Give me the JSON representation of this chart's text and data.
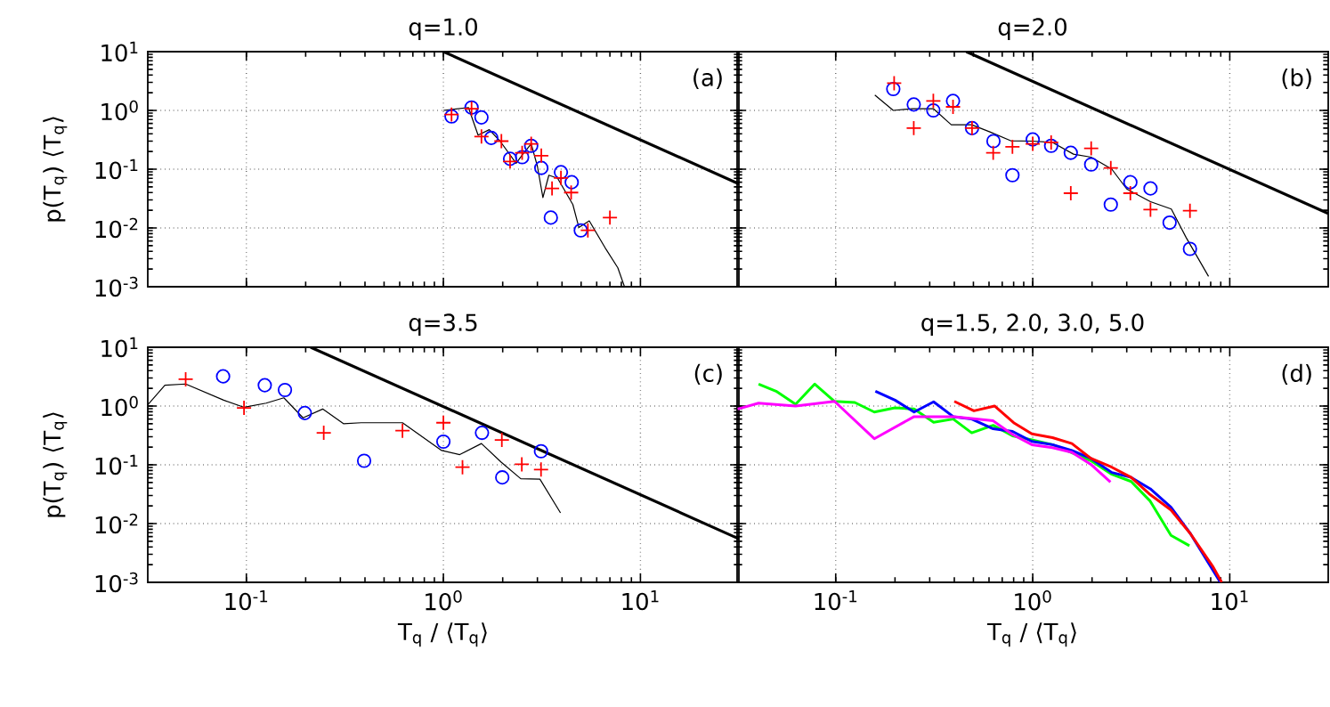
{
  "chart_data": [
    {
      "type": "scatter",
      "title": "q=1.0",
      "ylabel": "p(T$_{q}$) ⟨T$_{q}$⟩",
      "annotations": [
        "(a)"
      ],
      "log": "xy",
      "grid": true,
      "tick_labels": "y",
      "xlim": [
        0.0316,
        31.6
      ],
      "ylim": [
        0.001,
        10
      ],
      "xticks": [
        {
          "value": 0.1,
          "label": null
        },
        {
          "value": 1,
          "label": null
        },
        {
          "value": 10,
          "label": null
        }
      ],
      "yticks": [
        {
          "value": 0.001,
          "label": "10$^{-3}$"
        },
        {
          "value": 0.01,
          "label": "10$^{-2}$"
        },
        {
          "value": 0.1,
          "label": "10$^{-1}$"
        },
        {
          "value": 1,
          "label": "10$^{0}$"
        },
        {
          "value": 10,
          "label": "10$^{1}$"
        }
      ],
      "series": [
        {
          "type": "line",
          "marker": "none",
          "color": "#000000",
          "x": [
            1,
            31.6
          ],
          "values": [
            10,
            0.0562
          ]
        },
        {
          "type": "line",
          "marker": "none",
          "color": "#000000",
          "x": [
            1,
            1.34,
            1.5,
            1.71,
            1.94,
            2.34,
            2.56,
            2.79,
            3.0,
            3.2,
            3.43,
            3.8,
            4.54,
            4.87,
            5.5,
            6.7,
            7.68,
            8.3
          ],
          "values": [
            1,
            1.12,
            0.38,
            0.47,
            0.3,
            0.126,
            0.19,
            0.27,
            0.112,
            0.033,
            0.079,
            0.07,
            0.025,
            0.0102,
            0.0132,
            0.0043,
            0.0021,
            0.001
          ]
        },
        {
          "type": "scatter",
          "marker": "circle",
          "color": "#0000ff",
          "x": [
            1.1,
            1.39,
            1.56,
            1.75,
            2.18,
            2.51,
            2.79,
            3.14,
            3.95,
            3.51,
            4.48,
            4.98
          ],
          "values": [
            0.79,
            1.12,
            0.76,
            0.34,
            0.15,
            0.16,
            0.25,
            0.105,
            0.089,
            0.015,
            0.06,
            0.0091
          ]
        },
        {
          "type": "scatter",
          "marker": "cross",
          "color": "#ff0000",
          "x": [
            1.1,
            1.39,
            1.56,
            1.97,
            2.18,
            2.51,
            2.79,
            3.14,
            3.56,
            3.95,
            4.45,
            5.41,
            7.0
          ],
          "values": [
            0.85,
            1.07,
            0.36,
            0.3,
            0.135,
            0.19,
            0.27,
            0.17,
            0.047,
            0.071,
            0.04,
            0.0091,
            0.015
          ]
        }
      ]
    },
    {
      "type": "scatter",
      "title": "q=2.0",
      "annotations": [
        "(b)"
      ],
      "log": "xy",
      "grid": true,
      "tick_labels": false,
      "xlim": [
        0.0316,
        31.6
      ],
      "ylim": [
        0.001,
        10
      ],
      "xticks": [
        {
          "value": 0.1,
          "label": null
        },
        {
          "value": 1,
          "label": null
        },
        {
          "value": 10,
          "label": null
        }
      ],
      "yticks": [
        {
          "value": 0.001,
          "label": null
        },
        {
          "value": 0.01,
          "label": null
        },
        {
          "value": 0.1,
          "label": null
        },
        {
          "value": 1,
          "label": null
        },
        {
          "value": 10,
          "label": null
        }
      ],
      "series": [
        {
          "type": "line",
          "marker": "none",
          "color": "#000000",
          "x": [
            0.46,
            31.6
          ],
          "values": [
            10,
            0.0176
          ]
        },
        {
          "type": "line",
          "marker": "none",
          "color": "#000000",
          "x": [
            0.158,
            0.196,
            0.245,
            0.313,
            0.386,
            0.49,
            0.606,
            0.773,
            1.0,
            1.26,
            1.61,
            1.98,
            2.52,
            3.0,
            3.96,
            5.05,
            6.0,
            7.8
          ],
          "values": [
            1.83,
            1.0,
            1.07,
            1.07,
            0.57,
            0.57,
            0.43,
            0.305,
            0.3,
            0.285,
            0.18,
            0.16,
            0.1,
            0.046,
            0.028,
            0.021,
            0.0069,
            0.0015
          ]
        },
        {
          "type": "scatter",
          "marker": "circle",
          "color": "#0000ff",
          "x": [
            0.196,
            0.249,
            0.313,
            0.394,
            0.492,
            0.632,
            0.789,
            1.0,
            1.24,
            1.56,
            1.98,
            2.49,
            3.13,
            3.96,
            4.95,
            6.28
          ],
          "values": [
            2.31,
            1.26,
            1.0,
            1.45,
            0.5,
            0.3,
            0.079,
            0.32,
            0.25,
            0.19,
            0.12,
            0.025,
            0.06,
            0.047,
            0.0123,
            0.0044
          ]
        },
        {
          "type": "scatter",
          "marker": "cross",
          "color": "#ff0000",
          "x": [
            0.198,
            0.249,
            0.313,
            0.394,
            0.492,
            0.63,
            0.789,
            1.0,
            1.24,
            1.56,
            1.98,
            2.49,
            3.13,
            3.96,
            6.28
          ],
          "values": [
            2.9,
            0.5,
            1.45,
            1.15,
            0.5,
            0.19,
            0.24,
            0.27,
            0.285,
            0.039,
            0.226,
            0.105,
            0.039,
            0.0205,
            0.0196
          ]
        }
      ]
    },
    {
      "type": "scatter",
      "title": "q=3.5",
      "xlabel": "T$_{q}$ / ⟨T$_{q}$⟩",
      "ylabel": "p(T$_{q}$) ⟨T$_{q}$⟩",
      "annotations": [
        "(c)"
      ],
      "log": "xy",
      "grid": true,
      "xlim": [
        0.0316,
        31.6
      ],
      "ylim": [
        0.001,
        10
      ],
      "xticks": [
        {
          "value": 0.1,
          "label": "10$^{-1}$"
        },
        {
          "value": 1,
          "label": "10$^{0}$"
        },
        {
          "value": 10,
          "label": "10$^{1}$"
        }
      ],
      "yticks": [
        {
          "value": 0.001,
          "label": "10$^{-3}$"
        },
        {
          "value": 0.01,
          "label": "10$^{-2}$"
        },
        {
          "value": 0.1,
          "label": "10$^{-1}$"
        },
        {
          "value": 1,
          "label": "10$^{0}$"
        },
        {
          "value": 10,
          "label": "10$^{1}$"
        }
      ],
      "series": [
        {
          "type": "line",
          "marker": "none",
          "color": "#000000",
          "x": [
            0.212,
            31.6
          ],
          "values": [
            10,
            0.0055
          ]
        },
        {
          "type": "line",
          "marker": "none",
          "color": "#000000",
          "x": [
            0.0316,
            0.0386,
            0.0492,
            0.0767,
            0.0975,
            0.126,
            0.155,
            0.194,
            0.244,
            0.311,
            0.383,
            0.62,
            0.98,
            1.21,
            1.56,
            1.97,
            2.47,
            3.09,
            3.93
          ],
          "values": [
            1.05,
            2.26,
            2.37,
            1.26,
            0.95,
            1.12,
            1.38,
            0.63,
            0.89,
            0.5,
            0.52,
            0.52,
            0.175,
            0.149,
            0.23,
            0.11,
            0.058,
            0.057,
            0.0152
          ]
        },
        {
          "type": "scatter",
          "marker": "circle",
          "color": "#0000ff",
          "x": [
            0.0762,
            0.124,
            0.157,
            0.198,
            0.396,
            1.0,
            1.57,
            1.99,
            3.13
          ],
          "values": [
            3.2,
            2.26,
            1.87,
            0.76,
            0.117,
            0.248,
            0.35,
            0.061,
            0.17
          ]
        },
        {
          "type": "scatter",
          "marker": "cross",
          "color": "#ff0000",
          "x": [
            0.0492,
            0.0973,
            0.247,
            0.62,
            1.0,
            1.25,
            1.98,
            2.5,
            3.13
          ],
          "values": [
            2.85,
            0.93,
            0.35,
            0.38,
            0.52,
            0.091,
            0.265,
            0.102,
            0.083
          ]
        }
      ]
    },
    {
      "type": "line",
      "title": "q=1.5, 2.0, 3.0, 5.0",
      "xlabel": "T$_{q}$ / ⟨T$_{q}$⟩",
      "annotations": [
        "(d)"
      ],
      "log": "xy",
      "grid": true,
      "tick_labels": "x",
      "xlim": [
        0.0316,
        31.6
      ],
      "ylim": [
        0.001,
        10
      ],
      "xticks": [
        {
          "value": 0.1,
          "label": "10$^{-1}$"
        },
        {
          "value": 1,
          "label": "10$^{0}$"
        },
        {
          "value": 10,
          "label": "10$^{1}$"
        }
      ],
      "yticks": [
        {
          "value": 0.001,
          "label": null
        },
        {
          "value": 0.01,
          "label": null
        },
        {
          "value": 0.1,
          "label": null
        },
        {
          "value": 1,
          "label": null
        },
        {
          "value": 10,
          "label": null
        }
      ],
      "series": [
        {
          "color": "#00ff00",
          "x": [
            0.0406,
            0.0498,
            0.0626,
            0.0783,
            0.0987,
            0.125,
            0.157,
            0.2,
            0.25,
            0.314,
            0.395,
            0.49,
            0.63,
            0.79,
            0.99,
            1.26,
            1.58,
            1.97,
            2.52,
            3.16,
            3.95,
            5.03,
            6.24
          ],
          "values": [
            2.37,
            1.79,
            1.07,
            2.37,
            1.2,
            1.15,
            0.79,
            0.93,
            0.89,
            0.53,
            0.6,
            0.35,
            0.47,
            0.31,
            0.266,
            0.22,
            null,
            0.118,
            0.069,
            0.052,
            0.024,
            0.0063,
            0.0042
          ]
        },
        {
          "color": "#0000ff",
          "x": [
            0.159,
            0.2,
            0.25,
            0.314,
            0.395,
            0.49,
            0.63,
            0.79,
            0.99,
            1.26,
            1.58,
            1.97,
            2.52,
            3.16,
            3.95,
            5.03,
            6.32,
            8.96
          ],
          "values": [
            1.79,
            1.26,
            0.79,
            1.18,
            0.66,
            0.6,
            0.41,
            0.37,
            0.25,
            0.22,
            0.175,
            0.129,
            0.074,
            0.061,
            0.039,
            0.019,
            0.0067,
            0.001
          ]
        },
        {
          "color": "#ff0000",
          "x": [
            0.4,
            0.503,
            0.64,
            0.8,
            0.99,
            1.26,
            1.58,
            1.97,
            2.52,
            3.16,
            3.95,
            5.03,
            6.32,
            8.17,
            9.1
          ],
          "values": [
            1.2,
            0.83,
            1.0,
            0.52,
            0.335,
            0.29,
            0.23,
            0.129,
            0.091,
            0.061,
            0.031,
            0.017,
            0.0067,
            0.0019,
            0.001
          ]
        },
        {
          "color": "#ff00ff",
          "x": [
            0.0318,
            0.0406,
            0.0626,
            0.0987,
            0.157,
            0.25,
            0.4,
            0.63,
            0.79,
            0.99,
            1.26,
            1.58,
            1.97,
            2.48
          ],
          "values": [
            0.89,
            1.12,
            1.0,
            1.2,
            0.278,
            0.66,
            0.66,
            0.56,
            0.327,
            0.22,
            0.196,
            0.163,
            0.102,
            0.051
          ]
        }
      ]
    }
  ]
}
